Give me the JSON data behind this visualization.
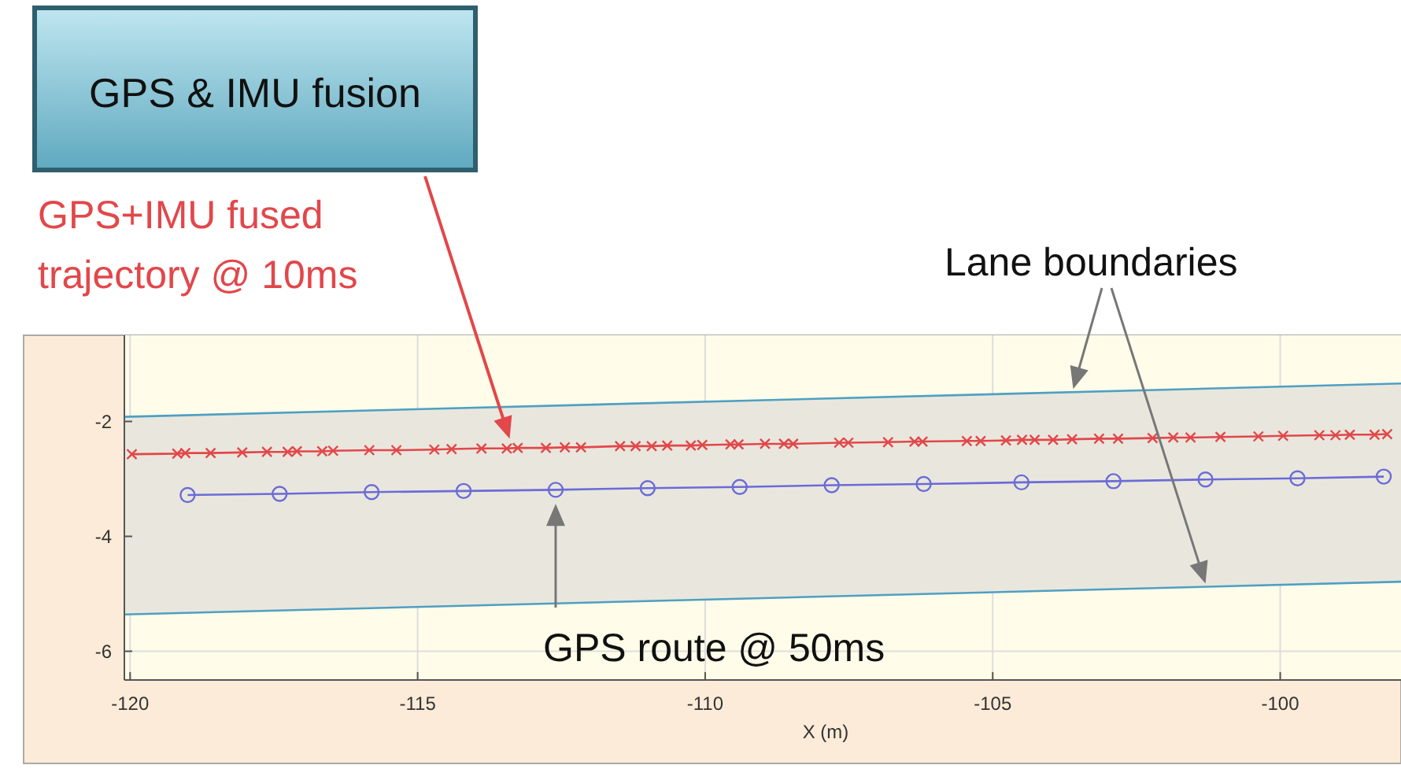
{
  "chart_data": {
    "type": "line",
    "title": "GPS & IMU fusion",
    "xlabel": "X (m)",
    "xlim": [
      -120.1,
      -97.9
    ],
    "ylim": [
      -6.5,
      -0.5
    ],
    "xticks": [
      -120,
      -115,
      -110,
      -105,
      -100
    ],
    "yticks": [
      -6,
      -4,
      -2
    ],
    "grid": true,
    "annotations": [
      "GPS+IMU fused trajectory @ 10ms",
      "Lane boundaries",
      "GPS route @ 50ms"
    ],
    "series": [
      {
        "type": "line",
        "color": "#4f9fc4",
        "marker": "none",
        "x": [
          -120.1,
          -97.9
        ],
        "values": [
          -1.92,
          -1.34
        ],
        "lower": [
          -5.36,
          -4.79
        ],
        "upper": [
          -1.92,
          -1.34
        ]
      },
      {
        "type": "line",
        "color": "#4f9fc4",
        "marker": "none",
        "x": [
          -120.1,
          -97.9
        ],
        "values": [
          -5.36,
          -4.79
        ]
      },
      {
        "type": "line",
        "color": "#e2474a",
        "marker": "cross",
        "x": [
          -119.97,
          -119.18,
          -119.04,
          -118.6,
          -118.05,
          -117.62,
          -117.26,
          -117.1,
          -116.66,
          -116.47,
          -115.84,
          -115.37,
          -114.71,
          -114.41,
          -113.89,
          -113.45,
          -113.26,
          -112.77,
          -112.44,
          -112.16,
          -111.48,
          -111.21,
          -110.93,
          -110.66,
          -110.25,
          -110.05,
          -109.56,
          -109.42,
          -108.96,
          -108.63,
          -108.47,
          -107.67,
          -107.51,
          -106.82,
          -106.36,
          -106.22,
          -105.45,
          -105.21,
          -104.77,
          -104.49,
          -104.27,
          -103.95,
          -103.62,
          -103.15,
          -102.82,
          -102.22,
          -101.86,
          -101.56,
          -101.04,
          -100.38,
          -99.95,
          -99.32,
          -99.04,
          -98.79,
          -98.36,
          -98.14
        ],
        "values": [
          -2.57,
          -2.56,
          -2.55,
          -2.55,
          -2.54,
          -2.53,
          -2.53,
          -2.52,
          -2.52,
          -2.51,
          -2.5,
          -2.5,
          -2.49,
          -2.48,
          -2.47,
          -2.47,
          -2.46,
          -2.46,
          -2.45,
          -2.45,
          -2.43,
          -2.43,
          -2.43,
          -2.42,
          -2.42,
          -2.41,
          -2.4,
          -2.4,
          -2.39,
          -2.39,
          -2.39,
          -2.37,
          -2.37,
          -2.36,
          -2.35,
          -2.35,
          -2.34,
          -2.34,
          -2.33,
          -2.32,
          -2.32,
          -2.32,
          -2.31,
          -2.3,
          -2.3,
          -2.29,
          -2.28,
          -2.28,
          -2.27,
          -2.26,
          -2.25,
          -2.24,
          -2.24,
          -2.23,
          -2.23,
          -2.22
        ]
      },
      {
        "type": "line",
        "color": "#6b6bd8",
        "marker": "circle",
        "x": [
          -119,
          -117.4,
          -115.8,
          -114.2,
          -112.6,
          -111,
          -109.4,
          -107.8,
          -106.2,
          -104.5,
          -102.9,
          -101.3,
          -99.7,
          -98.2
        ],
        "values": [
          -3.28,
          -3.26,
          -3.23,
          -3.21,
          -3.19,
          -3.16,
          -3.14,
          -3.11,
          -3.09,
          -3.06,
          -3.04,
          -3.01,
          -2.99,
          -2.96
        ]
      }
    ]
  }
}
